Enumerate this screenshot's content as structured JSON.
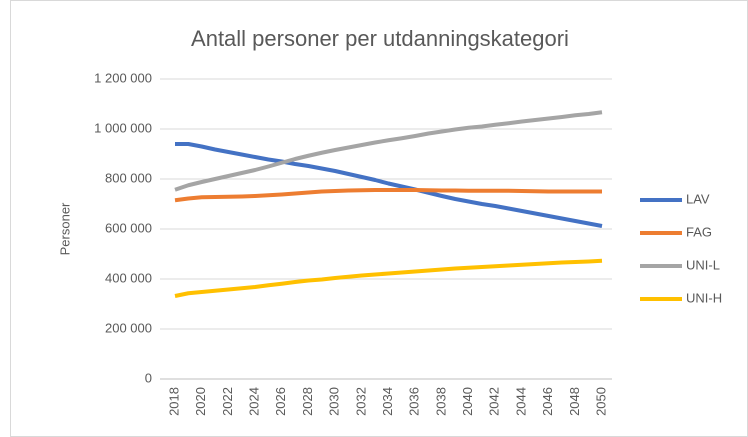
{
  "chart_data": {
    "type": "line",
    "title": "Antall personer per utdanningskategori",
    "y_label": "Personer",
    "x": [
      2018,
      2019,
      2020,
      2021,
      2022,
      2023,
      2024,
      2025,
      2026,
      2027,
      2028,
      2029,
      2030,
      2031,
      2032,
      2033,
      2034,
      2035,
      2036,
      2037,
      2038,
      2039,
      2040,
      2041,
      2042,
      2043,
      2044,
      2045,
      2046,
      2047,
      2048,
      2049,
      2050
    ],
    "xlim": [
      2018,
      2050
    ],
    "xticks": [
      2018,
      2020,
      2022,
      2024,
      2026,
      2028,
      2030,
      2032,
      2034,
      2036,
      2038,
      2040,
      2042,
      2044,
      2046,
      2048,
      2050
    ],
    "ylim": [
      0,
      1200000
    ],
    "yticks": [
      0,
      {
        "value": 200000,
        "label": "200 000"
      },
      {
        "value": 400000,
        "label": "400 000"
      },
      {
        "value": 600000,
        "label": "600 000"
      },
      {
        "value": 800000,
        "label": "800 000"
      },
      {
        "value": 1000000,
        "label": "1 000 000"
      },
      {
        "value": 1200000,
        "label": "1 200 000"
      }
    ],
    "grid": true,
    "legend": "right",
    "series": [
      {
        "name": "LAV",
        "color": "#4472c4",
        "values": [
          940000,
          940000,
          930000,
          918000,
          908000,
          898000,
          888000,
          878000,
          870000,
          860000,
          852000,
          842000,
          832000,
          820000,
          808000,
          796000,
          782000,
          770000,
          758000,
          745000,
          732000,
          720000,
          710000,
          700000,
          692000,
          682000,
          672000,
          662000,
          652000,
          642000,
          632000,
          622000,
          612000
        ]
      },
      {
        "name": "FAG",
        "color": "#ed7d31",
        "values": [
          715000,
          722000,
          727000,
          728000,
          729000,
          730000,
          732000,
          735000,
          738000,
          742000,
          746000,
          750000,
          752000,
          754000,
          755000,
          756000,
          756000,
          756000,
          756000,
          755000,
          754000,
          754000,
          753000,
          753000,
          753000,
          753000,
          752000,
          751000,
          750000,
          750000,
          750000,
          750000,
          750000
        ]
      },
      {
        "name": "UNI-L",
        "color": "#a5a5a5",
        "values": [
          757000,
          775000,
          788000,
          800000,
          812000,
          824000,
          836000,
          850000,
          865000,
          880000,
          893000,
          905000,
          916000,
          926000,
          936000,
          946000,
          955000,
          963000,
          972000,
          982000,
          990000,
          998000,
          1005000,
          1010000,
          1017000,
          1023000,
          1030000,
          1036000,
          1042000,
          1048000,
          1055000,
          1060000,
          1067000
        ]
      },
      {
        "name": "UNI-H",
        "color": "#ffc000",
        "values": [
          332000,
          343000,
          348000,
          353000,
          358000,
          363000,
          368000,
          375000,
          381000,
          388000,
          394000,
          398000,
          404000,
          409000,
          414000,
          418000,
          422000,
          426000,
          430000,
          434000,
          438000,
          442000,
          445000,
          448000,
          451000,
          454000,
          457000,
          460000,
          463000,
          466000,
          468000,
          470000,
          473000
        ]
      }
    ]
  }
}
